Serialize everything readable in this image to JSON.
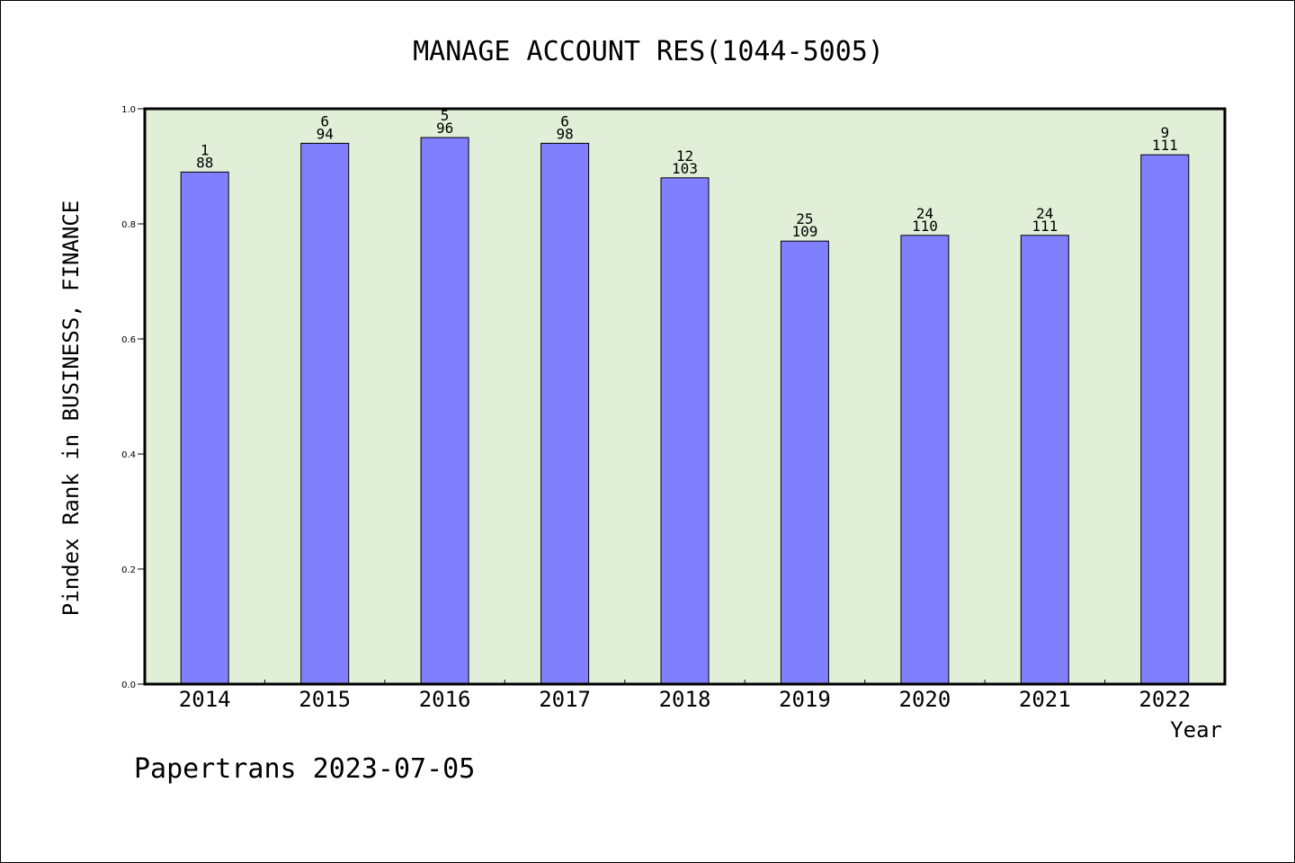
{
  "chart_data": {
    "type": "bar",
    "title": "MANAGE ACCOUNT RES(1044-5005)",
    "xlabel": "Year",
    "ylabel": "Pindex Rank in BUSINESS, FINANCE",
    "categories": [
      "2014",
      "2015",
      "2016",
      "2017",
      "2018",
      "2019",
      "2020",
      "2021",
      "2022"
    ],
    "values": [
      0.89,
      0.94,
      0.95,
      0.94,
      0.88,
      0.77,
      0.78,
      0.78,
      0.92
    ],
    "rank_labels": [
      "1",
      "6",
      "5",
      "6",
      "12",
      "25",
      "24",
      "24",
      "9"
    ],
    "total_labels": [
      "88",
      "94",
      "96",
      "98",
      "103",
      "109",
      "110",
      "111",
      "111"
    ],
    "ylim": [
      0.0,
      1.0
    ],
    "yticks": [
      "0.0",
      "0.2",
      "0.4",
      "0.6",
      "0.8",
      "1.0"
    ],
    "grid": false,
    "legend": "none",
    "colors": {
      "bar_fill": "#8080ff",
      "plot_background": "#e2efd8",
      "axis": "#000000"
    }
  },
  "footer": {
    "text": "Papertrans 2023-07-05"
  }
}
